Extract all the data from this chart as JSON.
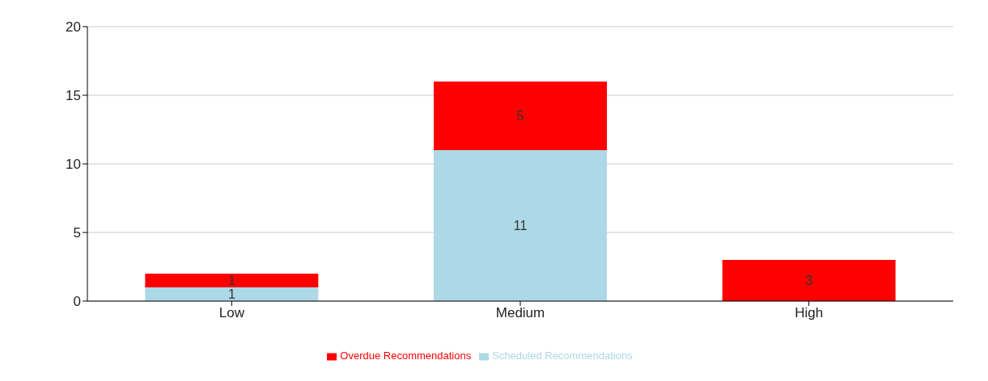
{
  "chart_data": {
    "type": "bar",
    "stacked": true,
    "categories": [
      "Low",
      "Medium",
      "High"
    ],
    "series": [
      {
        "name": "Scheduled Recommendations",
        "color": "#add8e6",
        "values": [
          1,
          11,
          0
        ],
        "value_labels": [
          "1",
          "11",
          null
        ]
      },
      {
        "name": "Overdue Recommendations",
        "color": "#ff0000",
        "values": [
          1,
          5,
          3
        ],
        "value_labels": [
          "1",
          "5",
          "3"
        ]
      }
    ],
    "ylim": [
      0,
      20
    ],
    "yticks": [
      0,
      5,
      10,
      15,
      20
    ],
    "grid": "y",
    "legend": "bottom"
  }
}
